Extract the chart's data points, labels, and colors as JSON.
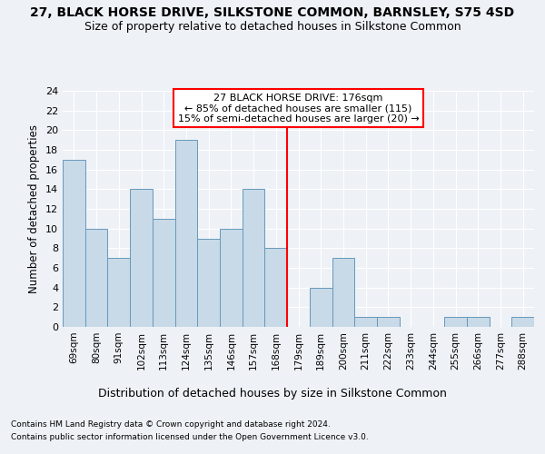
{
  "title": "27, BLACK HORSE DRIVE, SILKSTONE COMMON, BARNSLEY, S75 4SD",
  "subtitle": "Size of property relative to detached houses in Silkstone Common",
  "xlabel": "Distribution of detached houses by size in Silkstone Common",
  "ylabel": "Number of detached properties",
  "footer1": "Contains HM Land Registry data © Crown copyright and database right 2024.",
  "footer2": "Contains public sector information licensed under the Open Government Licence v3.0.",
  "categories": [
    "69sqm",
    "80sqm",
    "91sqm",
    "102sqm",
    "113sqm",
    "124sqm",
    "135sqm",
    "146sqm",
    "157sqm",
    "168sqm",
    "179sqm",
    "189sqm",
    "200sqm",
    "211sqm",
    "222sqm",
    "233sqm",
    "244sqm",
    "255sqm",
    "266sqm",
    "277sqm",
    "288sqm"
  ],
  "values": [
    17,
    10,
    7,
    14,
    11,
    19,
    9,
    10,
    14,
    8,
    0,
    4,
    7,
    1,
    1,
    0,
    0,
    1,
    1,
    0,
    1
  ],
  "bar_color": "#c8d9e8",
  "bar_edge_color": "#6699bb",
  "highlight_color": "red",
  "annotation_title": "27 BLACK HORSE DRIVE: 176sqm",
  "annotation_line1": "← 85% of detached houses are smaller (115)",
  "annotation_line2": "15% of semi-detached houses are larger (20) →",
  "ylim": [
    0,
    24
  ],
  "yticks": [
    0,
    2,
    4,
    6,
    8,
    10,
    12,
    14,
    16,
    18,
    20,
    22,
    24
  ],
  "background_color": "#eef2f7",
  "plot_bg_color": "#eef2f7",
  "grid_color": "#ffffff",
  "title_fontsize": 10,
  "subtitle_fontsize": 9
}
